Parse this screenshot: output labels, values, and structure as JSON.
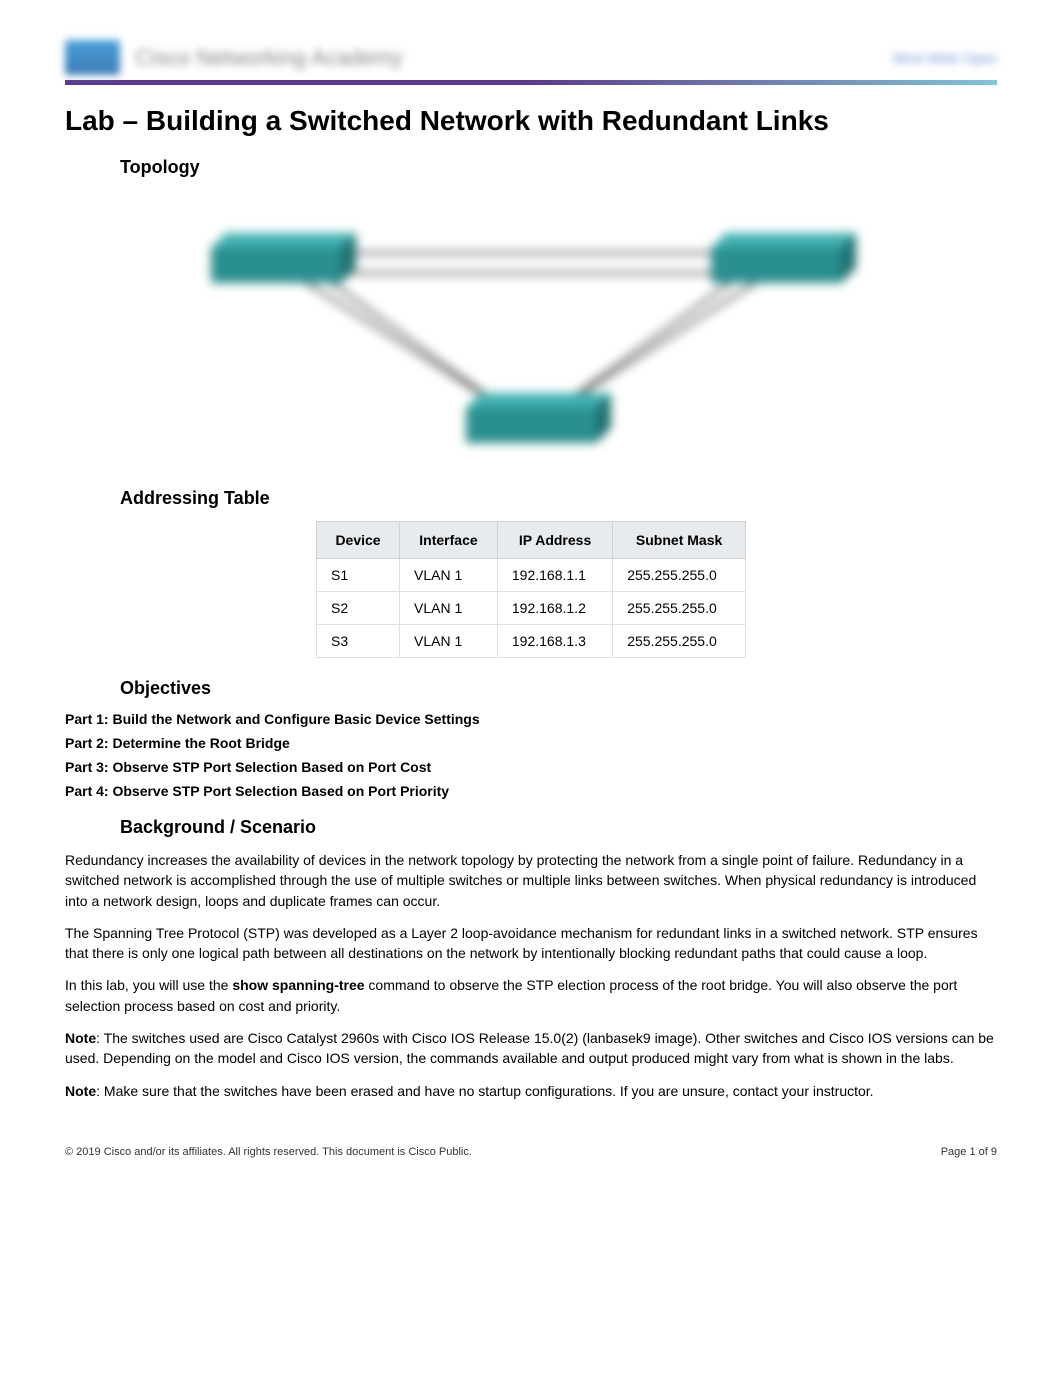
{
  "header": {
    "logo_text": "Cisco Networking Academy",
    "right_text": "Mind Wide Open"
  },
  "title": "Lab – Building a Switched Network with Redundant Links",
  "sections": {
    "topology_heading": "Topology",
    "addressing_heading": "Addressing Table",
    "objectives_heading": "Objectives",
    "background_heading": "Background / Scenario"
  },
  "topology": {
    "switch_color": "#2a8f8f",
    "switch_top_color": "#3fafaf",
    "line_color": "#5a5a5a",
    "bg_color": "#f5f5f5"
  },
  "addressing_table": {
    "columns": [
      "Device",
      "Interface",
      "IP Address",
      "Subnet Mask"
    ],
    "rows": [
      [
        "S1",
        "VLAN 1",
        "192.168.1.1",
        "255.255.255.0"
      ],
      [
        "S2",
        "VLAN 1",
        "192.168.1.2",
        "255.255.255.0"
      ],
      [
        "S3",
        "VLAN 1",
        "192.168.1.3",
        "255.255.255.0"
      ]
    ],
    "header_bg": "#e8ebee",
    "border_color": "#d0d0d0"
  },
  "objectives": {
    "parts": [
      "Part 1: Build the Network and Configure Basic Device Settings",
      "Part 2: Determine the Root Bridge",
      "Part 3: Observe STP Port Selection Based on Port Cost",
      "Part 4: Observe STP Port Selection Based on Port Priority"
    ]
  },
  "background": {
    "para1": "Redundancy increases the availability of devices in the network topology by protecting the network from a single point of failure. Redundancy in a switched network is accomplished through the use of multiple switches or multiple links between switches. When physical redundancy is introduced into a network design, loops and duplicate frames can occur.",
    "para2": "The Spanning Tree Protocol (STP) was developed as a Layer 2 loop-avoidance mechanism for redundant links in a switched network. STP ensures that there is only one logical path between all destinations on the network by intentionally blocking redundant paths that could cause a loop.",
    "para3_pre": "In this lab, you will use the ",
    "para3_cmd": "show spanning-tree",
    "para3_post": " command to observe the STP election process of the root bridge. You will also observe the port selection process based on cost and priority.",
    "note1_label": "Note",
    "note1_text": ": The switches used are Cisco Catalyst 2960s with Cisco IOS Release 15.0(2) (lanbasek9 image). Other switches and Cisco IOS versions can be used. Depending on the model and Cisco IOS version, the commands available and output produced might vary from what is shown in the labs.",
    "note2_label": "Note",
    "note2_text": ": Make sure that the switches have been erased and have no startup configurations. If you are unsure, contact your instructor."
  },
  "footer": {
    "copyright": "© 2019 Cisco and/or its affiliates. All rights reserved. This document is Cisco Public.",
    "page": "Page 1 of 9",
    "page_label": "Page ",
    "page_num": "1",
    "page_of": " of ",
    "page_total": "9"
  }
}
